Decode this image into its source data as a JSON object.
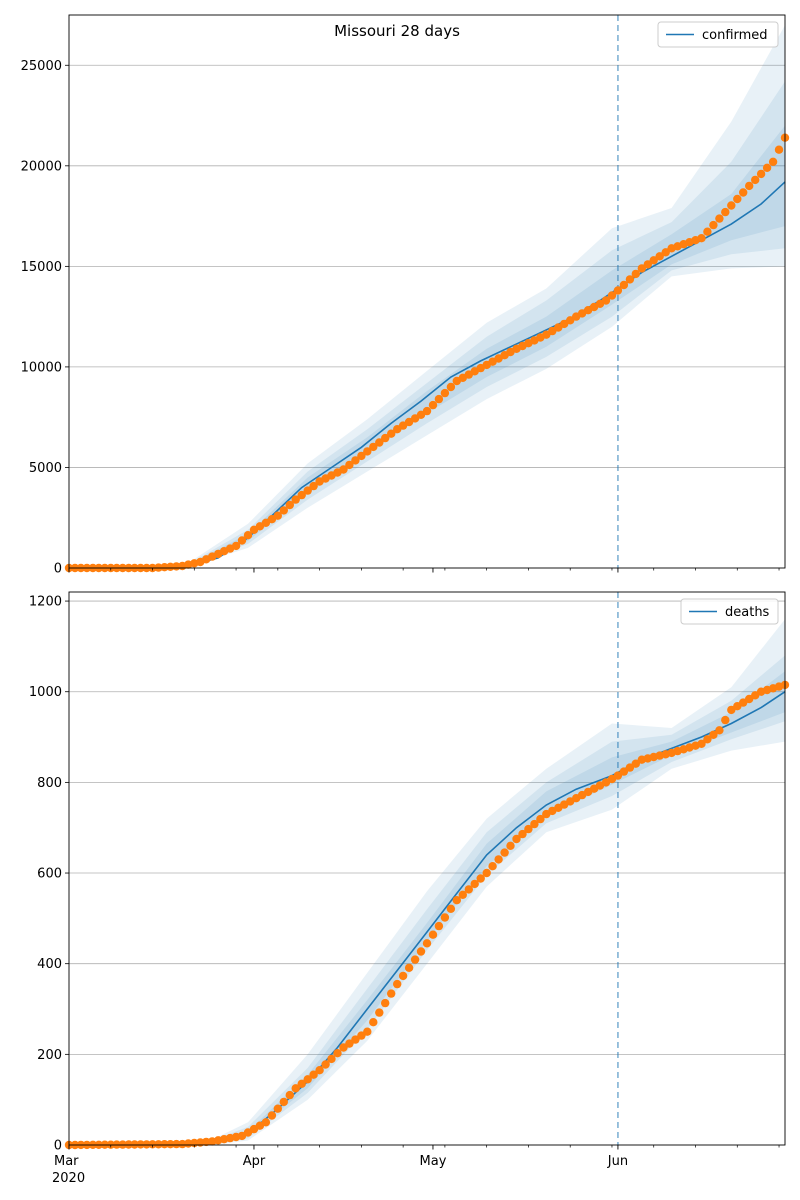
{
  "title": "Missouri 28 days",
  "x_axis": {
    "year_label": "2020",
    "tick_labels": [
      "Mar",
      "Apr",
      "May",
      "Jun"
    ]
  },
  "colors": {
    "model": "#1f77b4",
    "observed": "#ff7f0e",
    "grid": "#b0b0b0"
  },
  "chart_data": [
    {
      "type": "line",
      "legend_label": "confirmed",
      "legend_position": "top-right",
      "x_range": [
        "2020-03-01",
        "2020-06-29"
      ],
      "ylim": [
        0,
        27500
      ],
      "yticks": [
        0,
        5000,
        10000,
        15000,
        20000,
        25000
      ],
      "grid": "horizontal",
      "forecast_start": "2020-06-01",
      "series": [
        {
          "name": "confirmed",
          "role": "model",
          "x": [
            "2020-03-01",
            "2020-03-15",
            "2020-03-21",
            "2020-03-26",
            "2020-03-31",
            "2020-04-04",
            "2020-04-09",
            "2020-04-14",
            "2020-04-19",
            "2020-04-24",
            "2020-04-29",
            "2020-05-04",
            "2020-05-09",
            "2020-05-14",
            "2020-05-19",
            "2020-05-24",
            "2020-05-29",
            "2020-06-01",
            "2020-06-05",
            "2020-06-10",
            "2020-06-15",
            "2020-06-20",
            "2020-06-25",
            "2020-06-29"
          ],
          "values": [
            0,
            0,
            100,
            500,
            1500,
            2600,
            4000,
            5000,
            6000,
            7200,
            8300,
            9500,
            10300,
            11000,
            11700,
            12400,
            13300,
            13900,
            14700,
            15500,
            16300,
            17100,
            18100,
            19200
          ]
        },
        {
          "name": "confirmed",
          "role": "observed",
          "x": [
            "2020-03-01",
            "2020-03-10",
            "2020-03-15",
            "2020-03-20",
            "2020-03-23",
            "2020-03-26",
            "2020-03-29",
            "2020-04-01",
            "2020-04-05",
            "2020-04-08",
            "2020-04-12",
            "2020-04-16",
            "2020-04-20",
            "2020-04-25",
            "2020-04-30",
            "2020-05-05",
            "2020-05-10",
            "2020-05-15",
            "2020-05-20",
            "2020-05-25",
            "2020-05-30",
            "2020-06-01",
            "2020-06-05",
            "2020-06-10",
            "2020-06-15",
            "2020-06-19",
            "2020-06-23",
            "2020-06-27",
            "2020-06-29"
          ],
          "values": [
            0,
            0,
            0,
            100,
            300,
            700,
            1100,
            1900,
            2600,
            3400,
            4300,
            4900,
            5800,
            6900,
            7800,
            9300,
            10100,
            10900,
            11600,
            12500,
            13300,
            13800,
            14900,
            15900,
            16400,
            17700,
            19000,
            20200,
            21400
          ]
        }
      ],
      "bands": [
        {
          "x": [
            "2020-03-21",
            "2020-03-31",
            "2020-04-10",
            "2020-04-20",
            "2020-04-30",
            "2020-05-10",
            "2020-05-20",
            "2020-05-31",
            "2020-06-10",
            "2020-06-20",
            "2020-06-29"
          ],
          "low": [
            50,
            1000,
            3000,
            4800,
            6600,
            8400,
            9900,
            12000,
            14500,
            14900,
            15000
          ],
          "high": [
            250,
            2200,
            5200,
            7400,
            9800,
            12200,
            13900,
            16900,
            17900,
            22200,
            27000
          ]
        },
        {
          "x": [
            "2020-03-21",
            "2020-03-31",
            "2020-04-10",
            "2020-04-20",
            "2020-04-30",
            "2020-05-10",
            "2020-05-20",
            "2020-05-31",
            "2020-06-10",
            "2020-06-20",
            "2020-06-29"
          ],
          "low": [
            70,
            1200,
            3400,
            5300,
            7200,
            9000,
            10500,
            12500,
            14800,
            15600,
            15900
          ],
          "high": [
            200,
            1900,
            4800,
            6900,
            9200,
            11500,
            13300,
            15800,
            17200,
            20200,
            24200
          ]
        },
        {
          "x": [
            "2020-03-21",
            "2020-03-31",
            "2020-04-10",
            "2020-04-20",
            "2020-04-30",
            "2020-05-10",
            "2020-05-20",
            "2020-05-31",
            "2020-06-10",
            "2020-06-20",
            "2020-06-29"
          ],
          "low": [
            90,
            1350,
            3700,
            5700,
            7700,
            9500,
            11000,
            13100,
            15100,
            16300,
            17000
          ],
          "high": [
            160,
            1700,
            4500,
            6500,
            8800,
            10900,
            12500,
            14800,
            16600,
            18600,
            22000
          ]
        }
      ]
    },
    {
      "type": "line",
      "legend_label": "deaths",
      "legend_position": "top-right",
      "x_range": [
        "2020-03-01",
        "2020-06-29"
      ],
      "ylim": [
        0,
        1220
      ],
      "yticks": [
        0,
        200,
        400,
        600,
        800,
        1000,
        1200
      ],
      "grid": "horizontal",
      "forecast_start": "2020-06-01",
      "series": [
        {
          "name": "deaths",
          "role": "model",
          "x": [
            "2020-03-01",
            "2020-03-25",
            "2020-03-31",
            "2020-04-05",
            "2020-04-10",
            "2020-04-15",
            "2020-04-20",
            "2020-04-25",
            "2020-04-30",
            "2020-05-05",
            "2020-05-10",
            "2020-05-15",
            "2020-05-20",
            "2020-05-25",
            "2020-05-31",
            "2020-06-05",
            "2020-06-10",
            "2020-06-15",
            "2020-06-20",
            "2020-06-25",
            "2020-06-29"
          ],
          "values": [
            0,
            5,
            25,
            80,
            140,
            215,
            300,
            385,
            470,
            555,
            640,
            700,
            750,
            785,
            815,
            850,
            875,
            900,
            930,
            965,
            1000
          ]
        },
        {
          "name": "deaths",
          "role": "observed",
          "x": [
            "2020-03-01",
            "2020-03-20",
            "2020-03-25",
            "2020-03-30",
            "2020-04-03",
            "2020-04-08",
            "2020-04-12",
            "2020-04-16",
            "2020-04-20",
            "2020-04-25",
            "2020-04-30",
            "2020-05-05",
            "2020-05-10",
            "2020-05-15",
            "2020-05-20",
            "2020-05-25",
            "2020-05-30",
            "2020-06-01",
            "2020-06-05",
            "2020-06-10",
            "2020-06-15",
            "2020-06-18",
            "2020-06-20",
            "2020-06-25",
            "2020-06-29"
          ],
          "values": [
            0,
            2,
            8,
            20,
            50,
            125,
            165,
            215,
            250,
            355,
            445,
            540,
            600,
            675,
            730,
            765,
            800,
            815,
            850,
            865,
            885,
            915,
            960,
            1000,
            1015
          ]
        }
      ],
      "bands": [
        {
          "x": [
            "2020-03-25",
            "2020-03-31",
            "2020-04-10",
            "2020-04-20",
            "2020-04-30",
            "2020-05-10",
            "2020-05-20",
            "2020-05-31",
            "2020-06-10",
            "2020-06-20",
            "2020-06-29"
          ],
          "low": [
            0,
            10,
            100,
            230,
            400,
            570,
            690,
            740,
            830,
            870,
            890
          ],
          "high": [
            12,
            50,
            200,
            380,
            560,
            720,
            830,
            930,
            920,
            1010,
            1160
          ]
        },
        {
          "x": [
            "2020-03-25",
            "2020-03-31",
            "2020-04-10",
            "2020-04-20",
            "2020-04-30",
            "2020-05-10",
            "2020-05-20",
            "2020-05-31",
            "2020-06-10",
            "2020-06-20",
            "2020-06-29"
          ],
          "low": [
            2,
            15,
            115,
            255,
            430,
            595,
            710,
            770,
            845,
            895,
            935
          ],
          "high": [
            10,
            40,
            170,
            345,
            520,
            690,
            800,
            890,
            905,
            980,
            1080
          ]
        },
        {
          "x": [
            "2020-03-25",
            "2020-03-31",
            "2020-04-10",
            "2020-04-20",
            "2020-04-30",
            "2020-05-10",
            "2020-05-20",
            "2020-05-31",
            "2020-06-10",
            "2020-06-20",
            "2020-06-29"
          ],
          "low": [
            3,
            20,
            125,
            275,
            450,
            615,
            725,
            795,
            860,
            910,
            955
          ],
          "high": [
            8,
            30,
            155,
            320,
            490,
            665,
            780,
            855,
            890,
            955,
            1045
          ]
        }
      ]
    }
  ]
}
